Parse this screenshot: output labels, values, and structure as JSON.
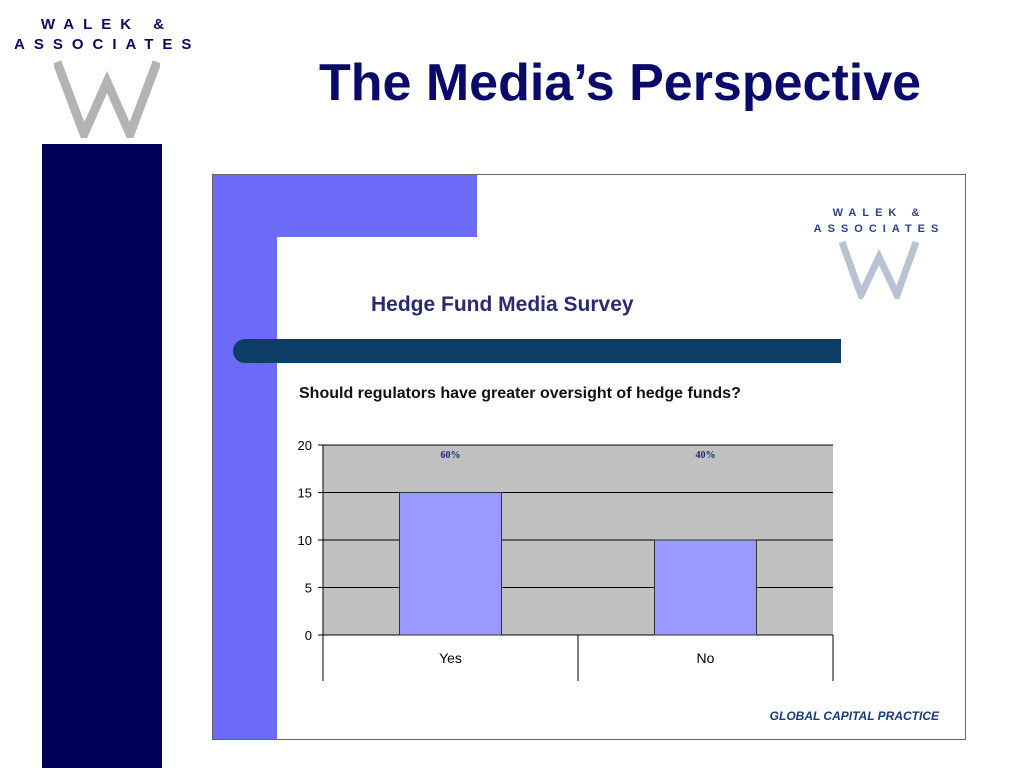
{
  "logo": {
    "line1": "WALEK &",
    "line2": "ASSOCIATES"
  },
  "slide": {
    "title": "The Media’s Perspective"
  },
  "inset": {
    "logo": {
      "line1": "WALEK &",
      "line2": "ASSOCIATES"
    },
    "survey_title": "Hedge Fund Media Survey",
    "footer": "GLOBAL CAPITAL PRACTICE"
  },
  "colors": {
    "title": "#0a0a6a",
    "left_bar": "#000058",
    "inset_accent": "#6b6bf7",
    "divider": "#0d3c66",
    "bar_fill": "#9999ff",
    "plot_bg": "#c0c0c0"
  },
  "chart_data": {
    "type": "bar",
    "title": "Should regulators have greater oversight of hedge funds?",
    "categories": [
      "Yes",
      "No"
    ],
    "values": [
      15,
      10
    ],
    "data_labels": [
      "60%",
      "40%"
    ],
    "y_ticks": [
      "0",
      "5",
      "10",
      "15",
      "20"
    ],
    "ylim": [
      0,
      20
    ],
    "grid": true,
    "legend": "none"
  }
}
